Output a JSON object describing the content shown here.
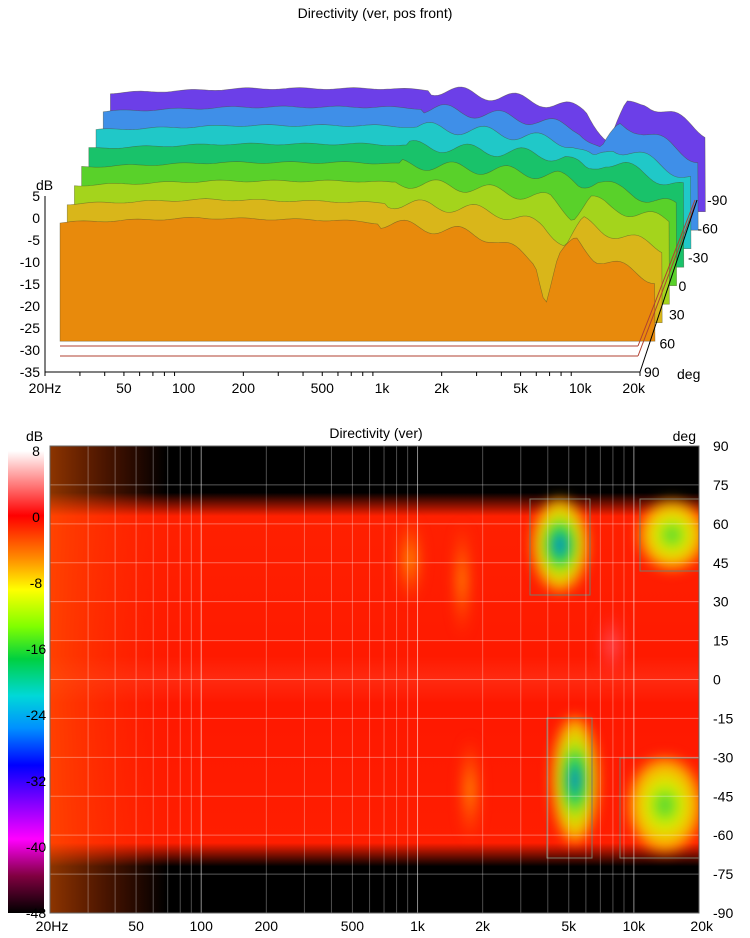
{
  "chart_data": [
    {
      "type": "area",
      "title": "Directivity (ver, pos front)",
      "ylabel": "dB",
      "ylim": [
        -35,
        5
      ],
      "y_ticks": [
        "5",
        "0",
        "-5",
        "-10",
        "-15",
        "-20",
        "-25",
        "-30",
        "-35"
      ],
      "x_scale": "log",
      "xlim": [
        20,
        20000
      ],
      "x_ticks": [
        "20Hz",
        "50",
        "100",
        "200",
        "500",
        "1k",
        "2k",
        "5k",
        "10k",
        "20k"
      ],
      "z_label": "deg",
      "z_ticks": [
        "-90",
        "-60",
        "-30",
        "0",
        "30",
        "60",
        "90"
      ],
      "series": [
        {
          "color": "#6c3fe8",
          "x": [
            20,
            100,
            500,
            1000,
            2000,
            3000,
            5000,
            6500,
            8000,
            10000,
            20000
          ],
          "values": [
            -1,
            0,
            0,
            -0.5,
            -2,
            -3,
            -5,
            -12,
            -4,
            -3,
            -10
          ]
        },
        {
          "color": "#3f8fe8",
          "x": [
            20,
            100,
            500,
            1000,
            2000,
            3000,
            5000,
            6500,
            8000,
            10000,
            20000
          ],
          "values": [
            -1,
            0,
            0,
            -0.5,
            -2,
            -3,
            -5,
            -10,
            -4,
            -5,
            -12
          ]
        },
        {
          "color": "#20c8c8",
          "x": [
            20,
            100,
            500,
            1000,
            2000,
            3000,
            5000,
            6500,
            8000,
            10000,
            20000
          ],
          "values": [
            -1,
            0,
            0,
            -0.5,
            -1.5,
            -2.5,
            -4,
            -8,
            -5,
            -6,
            -12
          ]
        },
        {
          "color": "#19c26a",
          "x": [
            20,
            100,
            500,
            1000,
            2000,
            3000,
            5000,
            6500,
            8000,
            10000,
            20000
          ],
          "values": [
            -1,
            0,
            0,
            -0.5,
            -1.5,
            -2,
            -3,
            -6,
            -4,
            -5,
            -10
          ]
        },
        {
          "color": "#59d12a",
          "x": [
            20,
            100,
            500,
            1000,
            2000,
            3000,
            5000,
            6500,
            8000,
            10000,
            20000
          ],
          "values": [
            -1,
            0,
            0,
            -0.5,
            -1.5,
            -2,
            -3,
            -5,
            -4,
            -6,
            -10
          ]
        },
        {
          "color": "#a4d41c",
          "x": [
            20,
            100,
            500,
            1000,
            2000,
            3000,
            5000,
            6500,
            8000,
            10000,
            20000
          ],
          "values": [
            -1,
            0,
            0,
            -0.5,
            -1.5,
            -2.5,
            -4,
            -8,
            -4,
            -6,
            -9
          ]
        },
        {
          "color": "#d9b61a",
          "x": [
            20,
            100,
            500,
            1000,
            2000,
            3000,
            5000,
            6500,
            8000,
            10000,
            20000
          ],
          "values": [
            -1,
            0,
            -0.5,
            -1,
            -2,
            -3,
            -6,
            -10,
            -5,
            -7,
            -11
          ]
        },
        {
          "color": "#e88a0c",
          "x": [
            20,
            100,
            500,
            1000,
            2000,
            3000,
            5000,
            5600,
            6500,
            8000,
            10000,
            20000
          ],
          "values": [
            -1,
            0,
            -0.5,
            -1.5,
            -3,
            -4.5,
            -10,
            -19,
            -9,
            -5,
            -9,
            -14
          ]
        }
      ]
    },
    {
      "type": "heatmap",
      "title": "Directivity (ver)",
      "colorbar_label": "dB",
      "colorbar_ticks": [
        "8",
        "0",
        "-8",
        "-16",
        "-24",
        "-32",
        "-40",
        "-48"
      ],
      "colorbar_range": [
        -48,
        8
      ],
      "x_scale": "log",
      "xlim": [
        20,
        20000
      ],
      "x_ticks": [
        "20Hz",
        "50",
        "100",
        "200",
        "500",
        "1k",
        "2k",
        "5k",
        "10k",
        "20k"
      ],
      "y_label": "deg",
      "ylim": [
        -90,
        90
      ],
      "y_ticks": [
        "90",
        "75",
        "60",
        "45",
        "30",
        "15",
        "0",
        "-15",
        "-30",
        "-45",
        "-60",
        "-75",
        "-90"
      ]
    }
  ]
}
